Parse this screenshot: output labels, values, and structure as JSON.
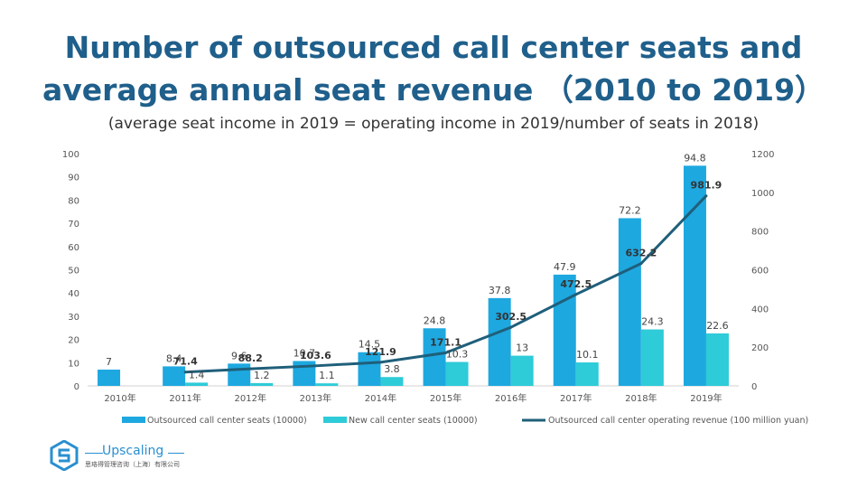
{
  "header": {
    "title_line1": "Number of outsourced call center seats and",
    "title_line2": "average annual seat revenue （2010 to 2019）",
    "subtitle": "(average seat income in 2019 = operating income in 2019/number of seats in 2018)"
  },
  "chart_data": {
    "type": "bar",
    "categories": [
      "2010年",
      "2011年",
      "2012年",
      "2013年",
      "2014年",
      "2015年",
      "2016年",
      "2017年",
      "2018年",
      "2019年"
    ],
    "series": [
      {
        "name": "Outsourced call center seats (10000)",
        "type": "bar",
        "axis": "left",
        "color": "#1ea8e0",
        "values": [
          7,
          8.4,
          9.6,
          10.7,
          14.5,
          24.8,
          37.8,
          47.9,
          72.2,
          94.8
        ],
        "labels": [
          "7",
          "8.4",
          "9.6",
          "10.7",
          "14.5",
          "24.8",
          "37.8",
          "47.9",
          "72.2",
          "94.8"
        ]
      },
      {
        "name": "New call center seats (10000)",
        "type": "bar",
        "axis": "left",
        "color": "#2ecbd8",
        "values": [
          null,
          1.4,
          1.2,
          1.1,
          3.8,
          10.3,
          13,
          10.1,
          24.3,
          22.6
        ],
        "labels": [
          "",
          "1.4",
          "1.2",
          "1.1",
          "3.8",
          "10.3",
          "13",
          "10.1",
          "24.3",
          "22.6"
        ]
      },
      {
        "name": "Outsourced call center operating revenue (100 million yuan)",
        "type": "line",
        "axis": "right",
        "color": "#1f5f7a",
        "values": [
          null,
          71.4,
          88.2,
          103.6,
          121.9,
          171.1,
          302.5,
          472.5,
          632.2,
          981.9
        ],
        "labels": [
          "",
          "71.4",
          "88.2",
          "103.6",
          "121.9",
          "171.1",
          "302.5",
          "472.5",
          "632.2",
          "981.9"
        ]
      }
    ],
    "y_left": {
      "min": 0,
      "max": 100,
      "ticks": [
        "0",
        "10",
        "20",
        "30",
        "40",
        "50",
        "60",
        "70",
        "80",
        "90",
        "100"
      ]
    },
    "y_right": {
      "min": 0,
      "max": 1200,
      "ticks": [
        "0",
        "200",
        "400",
        "600",
        "800",
        "1000",
        "1200"
      ]
    },
    "grid": false,
    "legend_position": "bottom"
  },
  "logo": {
    "name": "Upscaling",
    "subtitle": "思珞得管理咨询（上海）有限公司"
  }
}
